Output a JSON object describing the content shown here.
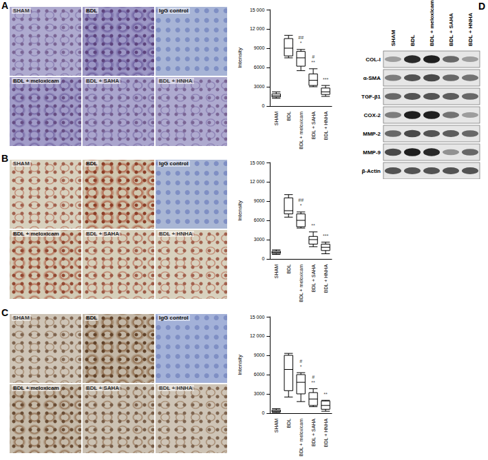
{
  "panels": [
    {
      "label": "A",
      "images": [
        "SHAM",
        "BDL",
        "IgG control",
        "BDL + meloxicam",
        "BDL + SAHA",
        "BDL + HNHA"
      ]
    },
    {
      "label": "B",
      "images": [
        "SHAM",
        "BDL",
        "IgG control",
        "BDL + meloxicam",
        "BDL + SAHA",
        "BDL + HNHA"
      ]
    },
    {
      "label": "C",
      "images": [
        "SHAM",
        "BDL",
        "IgG control",
        "BDL + meloxicam",
        "BDL + SAHA",
        "BDL + HNHA"
      ]
    }
  ],
  "chart_data": [
    {
      "type": "boxplot",
      "ylabel": "Intensity",
      "categories": [
        "SHAM",
        "BDL",
        "BDL + meloxicam",
        "BDL + SAHA",
        "BDL + HNHA"
      ],
      "values": [
        [
          1200,
          1400,
          1600,
          1900,
          2200
        ],
        [
          7500,
          7800,
          9000,
          10500,
          11000
        ],
        [
          5500,
          6200,
          7500,
          8500,
          8800
        ],
        [
          3000,
          3200,
          4000,
          5000,
          5800
        ],
        [
          1500,
          1800,
          2200,
          2800,
          3200
        ]
      ],
      "annotations": [
        null,
        null,
        [
          "##",
          "*"
        ],
        [
          "#",
          "**"
        ],
        [
          "***"
        ]
      ],
      "color": "#000000",
      "ylim": [
        0,
        15000
      ],
      "yticks": [
        0,
        3000,
        6000,
        9000,
        {
          "value": 12000,
          "label": "12 000"
        },
        {
          "value": 15000,
          "label": "15 000"
        }
      ]
    },
    {
      "type": "boxplot",
      "ylabel": "Intensity",
      "categories": [
        "SHAM",
        "BDL",
        "BDL + meloxicam",
        "BDL + SAHA",
        "BDL + HNHA"
      ],
      "values": [
        [
          700,
          850,
          1000,
          1200,
          1400
        ],
        [
          6500,
          7000,
          7500,
          9500,
          10000
        ],
        [
          4800,
          5000,
          6000,
          7000,
          7300
        ],
        [
          1900,
          2300,
          3000,
          3500,
          4200
        ],
        [
          800,
          1300,
          1800,
          2300,
          2600
        ]
      ],
      "annotations": [
        null,
        null,
        [
          "##",
          "*"
        ],
        [
          "**"
        ],
        [
          "***"
        ]
      ],
      "color": "#000000",
      "ylim": [
        0,
        15000
      ],
      "yticks": [
        0,
        3000,
        6000,
        9000,
        {
          "value": 12000,
          "label": "12 000"
        },
        {
          "value": 15000,
          "label": "15 000"
        }
      ]
    },
    {
      "type": "boxplot",
      "ylabel": "Intensity",
      "categories": [
        "SHAM",
        "BDL",
        "BDL + meloxicam",
        "BDL + SAHA",
        "BDL + HNHA"
      ],
      "values": [
        [
          100,
          200,
          300,
          500,
          700
        ],
        [
          2500,
          3500,
          6800,
          9000,
          9300
        ],
        [
          1800,
          3000,
          4800,
          6000,
          6300
        ],
        [
          1000,
          1200,
          2200,
          3200,
          3800
        ],
        [
          300,
          600,
          1200,
          1900,
          2000
        ]
      ],
      "annotations": [
        null,
        null,
        [
          "#",
          "*"
        ],
        [
          "#",
          "**"
        ],
        [
          "**"
        ]
      ],
      "color": "#000000",
      "ylim": [
        0,
        15000
      ],
      "yticks": [
        0,
        3000,
        6000,
        9000,
        {
          "value": 12000,
          "label": "12 000"
        },
        {
          "value": 15000,
          "label": "15 000"
        }
      ]
    }
  ],
  "blot": {
    "label": "D",
    "lanes": [
      "SHAM",
      "BDL",
      "BDL + meloxicam",
      "BDL + SAHA",
      "BDL + HNHA"
    ],
    "proteins": [
      "COL-I",
      "α-SMA",
      "TGF-β1",
      "COX-2",
      "MMP-2",
      "MMP-9",
      "β-Actin"
    ]
  }
}
